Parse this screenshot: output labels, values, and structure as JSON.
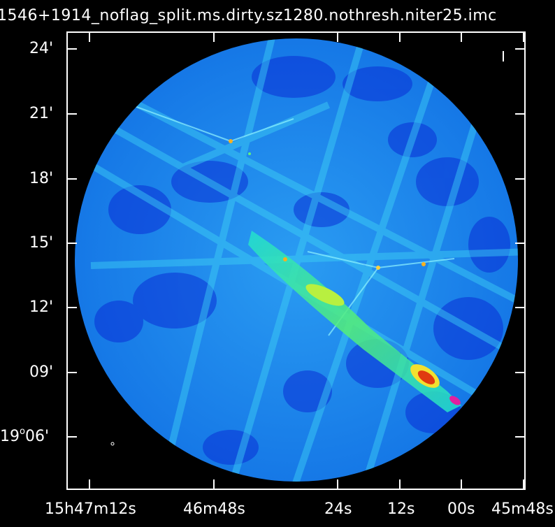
{
  "image_title": "1546+1914_noflag_split.ms.dirty.sz1280.nothresh.niter25.imc",
  "axes": {
    "y_ticks": [
      {
        "label": "24'"
      },
      {
        "label": "21'"
      },
      {
        "label": "18'"
      },
      {
        "label": "15'"
      },
      {
        "label": "12'"
      },
      {
        "label": "09'"
      },
      {
        "main": "19",
        "sup": "o",
        "rest": "06'"
      }
    ],
    "x_ticks": [
      {
        "parts": [
          [
            "15",
            ""
          ],
          [
            "h",
            ""
          ],
          [
            "47",
            ""
          ],
          [
            "m",
            ""
          ],
          [
            "12",
            ""
          ],
          [
            "s",
            ""
          ]
        ],
        "text": "15h47m12s"
      },
      {
        "text": "46m48s"
      },
      {
        "text": "24s"
      },
      {
        "text": "12s"
      },
      {
        "text": "00s"
      },
      {
        "text": "45m48s"
      }
    ]
  },
  "colors": {
    "background": "#000000",
    "field_base": "#1a8cf0",
    "field_dark": "#0a2fd6",
    "field_light": "#33d0f5",
    "ridge": "#22ee88",
    "peak": "#e03a10"
  }
}
